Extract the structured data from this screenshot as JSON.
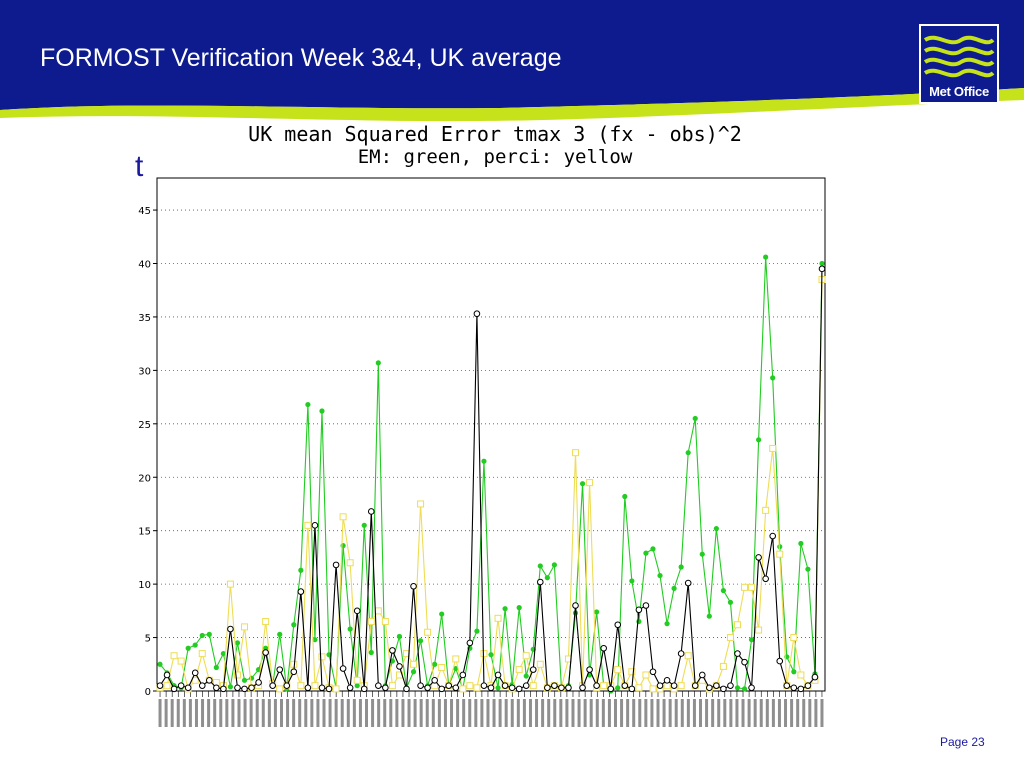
{
  "slide": {
    "title": "FORMOST Verification Week 3&4, UK average",
    "page": "Page 23",
    "stray_letter": "t",
    "banner_color": "#0d1b8e",
    "accent_color": "#c6e21a"
  },
  "logo": {
    "text": "Met Office",
    "icon": "met-office-waves-logo"
  },
  "chart_data": {
    "type": "line",
    "title": "UK mean Squared Error tmax 3 (fx - obs)^2",
    "subtitle": "EM: green, perci: yellow",
    "ylim": [
      0,
      48
    ],
    "yticks": [
      0,
      5,
      10,
      15,
      20,
      25,
      30,
      35,
      40,
      45
    ],
    "ytick_labels": [
      "0",
      "5",
      "10",
      "15",
      "20",
      "25",
      "30",
      "35",
      "40",
      "45"
    ],
    "grid": "horizontal dotted",
    "colors": {
      "green": "#22cc22",
      "yellow": "#eedd55",
      "black": "#000000"
    },
    "x_tick_count": 110,
    "series": [
      {
        "name": "EM",
        "color": "#22cc22",
        "values": [
          2.5,
          1.7,
          0.5,
          0.3,
          4.0,
          4.3,
          5.2,
          5.3,
          2.2,
          3.5,
          0.4,
          4.5,
          1.0,
          1.2,
          2.0,
          4.0,
          0.5,
          5.3,
          0.2,
          6.2,
          11.3,
          26.8,
          4.8,
          26.2,
          3.4,
          0.3,
          13.6,
          5.8,
          0.5,
          15.5,
          3.6,
          30.7,
          0.5,
          2.8,
          5.1,
          0.3,
          1.8,
          4.7,
          0.5,
          2.5,
          7.2,
          0.5,
          2.1,
          0.2,
          4.0,
          5.6,
          21.5,
          3.4,
          0.3,
          7.7,
          0.6,
          7.8,
          1.4,
          3.9,
          11.7,
          10.6,
          11.8,
          0.3,
          0.5,
          7.3,
          19.4,
          1.5,
          7.4,
          0.5,
          0.0,
          0.3,
          18.2,
          10.3,
          6.5,
          12.9,
          13.3,
          10.8,
          6.3,
          9.6,
          11.6,
          22.3,
          25.5,
          12.8,
          7.0,
          15.2,
          9.4,
          8.3,
          0.3,
          0.2,
          4.8,
          23.5,
          40.6,
          29.3,
          13.5,
          3.2,
          1.8,
          13.8,
          11.4,
          1.6,
          40.0
        ]
      },
      {
        "name": "perci",
        "color": "#eedd55",
        "values": [
          0.3,
          0.5,
          3.3,
          2.8,
          0.2,
          1.0,
          3.5,
          1.0,
          0.8,
          0.5,
          10.0,
          1.5,
          6.0,
          0.3,
          0.5,
          6.5,
          0.7,
          0.2,
          0.5,
          2.5,
          0.5,
          15.5,
          0.5,
          3.2,
          0.3,
          0.2,
          16.3,
          12.0,
          1.0,
          0.5,
          6.5,
          7.5,
          6.5,
          0.5,
          1.5,
          3.5,
          2.5,
          17.5,
          5.5,
          0.5,
          2.2,
          0.5,
          3.0,
          0.2,
          0.5,
          0.3,
          3.5,
          0.5,
          6.8,
          0.5,
          0.2,
          2.0,
          3.3,
          0.5,
          2.5,
          0.3,
          0.5,
          0.3,
          3.0,
          22.3,
          0.5,
          19.5,
          0.3,
          0.5,
          0.5,
          2.0,
          0.5,
          1.8,
          0.3,
          1.5,
          0.2,
          0.2,
          0.5,
          0.2,
          0.5,
          3.3,
          0.5,
          1.0,
          0.2,
          0.5,
          2.3,
          5.0,
          6.2,
          9.7,
          9.7,
          5.7,
          16.9,
          22.7,
          12.8,
          0.5,
          5.0,
          1.5,
          0.5,
          1.0,
          38.5
        ]
      },
      {
        "name": "",
        "color": "#000000",
        "values": [
          0.5,
          1.5,
          0.2,
          0.5,
          0.3,
          1.7,
          0.5,
          1.0,
          0.3,
          0.2,
          5.8,
          0.3,
          0.2,
          0.3,
          0.8,
          3.6,
          0.5,
          2.0,
          0.5,
          1.8,
          9.3,
          0.3,
          15.5,
          0.3,
          0.2,
          11.8,
          2.1,
          0.3,
          7.5,
          0.2,
          16.8,
          0.5,
          0.3,
          3.8,
          2.3,
          0.2,
          9.8,
          0.5,
          0.3,
          1.0,
          0.2,
          0.5,
          0.3,
          1.5,
          4.5,
          35.3,
          0.5,
          0.3,
          1.5,
          0.5,
          0.3,
          0.2,
          0.5,
          2.0,
          10.2,
          0.3,
          0.5,
          0.3,
          0.3,
          8.0,
          0.3,
          2.0,
          0.5,
          4.0,
          0.2,
          6.2,
          0.5,
          0.2,
          7.6,
          8.0,
          1.8,
          0.5,
          1.0,
          0.5,
          3.5,
          10.1,
          0.5,
          1.5,
          0.3,
          0.5,
          0.2,
          0.5,
          3.5,
          2.7,
          0.3,
          12.5,
          10.5,
          14.5,
          2.8,
          0.5,
          0.3,
          0.2,
          0.5,
          1.3,
          39.5
        ]
      }
    ]
  }
}
